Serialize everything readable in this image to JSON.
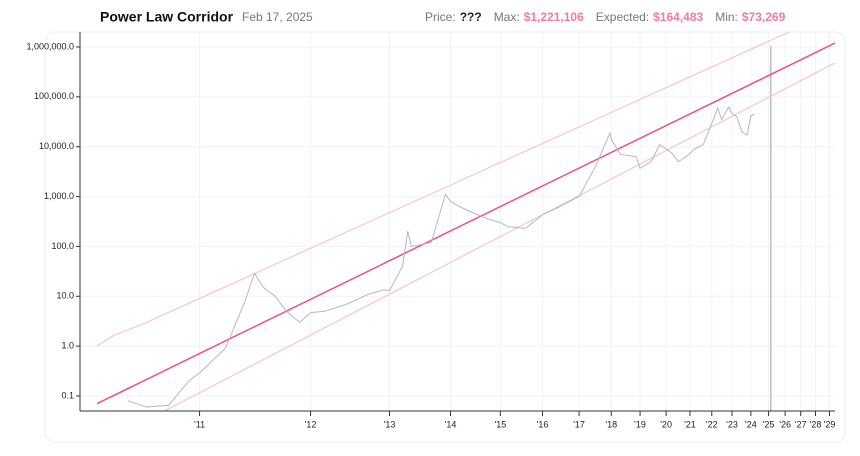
{
  "chart_data": {
    "type": "line",
    "title": "Power Law Corridor",
    "date": "Feb 17, 2025",
    "stats": [
      {
        "label": "Price:",
        "value": "???",
        "color": "#222222"
      },
      {
        "label": "Max:",
        "value": "$1,221,106",
        "color": "#f27aa4"
      },
      {
        "label": "Expected:",
        "value": "$164,483",
        "color": "#f27aa4"
      },
      {
        "label": "Min:",
        "value": "$73,269",
        "color": "#f27aa4"
      }
    ],
    "xscale": "log",
    "yscale": "log",
    "grid": true,
    "xlim": [
      470,
      7450
    ],
    "ylim": [
      0.05,
      2000000
    ],
    "xticks": [
      {
        "value": 728,
        "label": "'11"
      },
      {
        "value": 1093,
        "label": "'12"
      },
      {
        "value": 1459,
        "label": "'13"
      },
      {
        "value": 1824,
        "label": "'14"
      },
      {
        "value": 2189,
        "label": "'15"
      },
      {
        "value": 2554,
        "label": "'16"
      },
      {
        "value": 2920,
        "label": "'17"
      },
      {
        "value": 3285,
        "label": "'18"
      },
      {
        "value": 3650,
        "label": "'19"
      },
      {
        "value": 4015,
        "label": "'20"
      },
      {
        "value": 4381,
        "label": "'21"
      },
      {
        "value": 4746,
        "label": "'22"
      },
      {
        "value": 5111,
        "label": "'23"
      },
      {
        "value": 5476,
        "label": "'24"
      },
      {
        "value": 5842,
        "label": "'25"
      },
      {
        "value": 6207,
        "label": "'26"
      },
      {
        "value": 6572,
        "label": "'27"
      },
      {
        "value": 6937,
        "label": "'28"
      },
      {
        "value": 7303,
        "label": "'29"
      }
    ],
    "yticks": [
      0.1,
      {
        "value": 1,
        "label": "1.0"
      },
      {
        "value": 10,
        "label": "10.0"
      },
      {
        "value": 100,
        "label": "100.0"
      },
      {
        "value": 1000,
        "label": "1,000.0"
      },
      {
        "value": 10000,
        "label": "10,000.0"
      },
      {
        "value": 100000,
        "label": "100,000.0"
      },
      {
        "value": 1000000,
        "label": "1,000,000.0"
      }
    ],
    "marker_x": 5889,
    "marker_color": "#bdbdbd",
    "series": [
      {
        "color": "#f9c3d3",
        "width": 1.2,
        "x": [
          500,
          530,
          600,
          6300
        ],
        "values": [
          1.0,
          1.6,
          3.0,
          2000000
        ]
      },
      {
        "color": "#ef4f86",
        "width": 1.5,
        "x": [
          500,
          7450
        ],
        "values": [
          0.07,
          1200000
        ]
      },
      {
        "color": "#f9c3d3",
        "width": 1.2,
        "x": [
          640,
          7450
        ],
        "values": [
          0.05,
          480000
        ]
      },
      {
        "color": "#b8b8b8",
        "width": 1,
        "x": [
          560,
          600,
          650,
          700,
          730,
          800,
          860,
          890,
          920,
          960,
          1000,
          1050,
          1093,
          1150,
          1250,
          1350,
          1430,
          1459,
          1530,
          1560,
          1580,
          1700,
          1790,
          1824,
          1900,
          2000,
          2100,
          2189,
          2250,
          2400,
          2554,
          2700,
          2920,
          3100,
          3270,
          3285,
          3400,
          3600,
          3650,
          3800,
          3920,
          4100,
          4200,
          4380,
          4450,
          4600,
          4750,
          4850,
          4920,
          5050,
          5100,
          5200,
          5300,
          5400,
          5476,
          5550
        ],
        "values": [
          0.08,
          0.06,
          0.065,
          0.2,
          0.3,
          0.9,
          8,
          29,
          15,
          10,
          5,
          3,
          4.7,
          5,
          7,
          11,
          13.5,
          13,
          40,
          200,
          100,
          120,
          1100,
          800,
          600,
          450,
          350,
          300,
          250,
          230,
          430,
          600,
          1000,
          4000,
          19000,
          14000,
          7000,
          6300,
          3700,
          5000,
          11000,
          7500,
          5000,
          7200,
          9000,
          11000,
          30000,
          60000,
          35000,
          63000,
          48000,
          40000,
          20000,
          17000,
          42000,
          45000
        ]
      }
    ]
  }
}
